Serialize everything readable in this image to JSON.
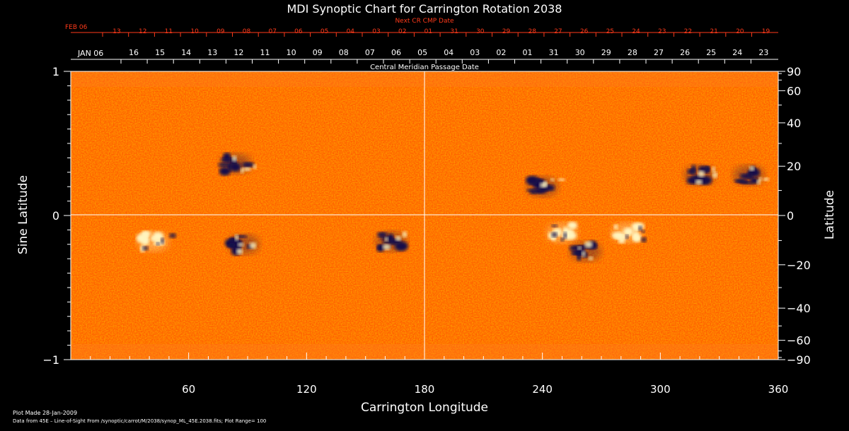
{
  "chart_data": {
    "type": "heatmap",
    "title": "MDI Synoptic Chart for Carrington Rotation 2038",
    "xlabel": "Carrington Longitude",
    "ylabel_left": "Sine Latitude",
    "ylabel_right": "Latitude",
    "xlim": [
      0,
      360
    ],
    "ylim_sine": [
      -1,
      1
    ],
    "x_ticks": [
      60,
      120,
      180,
      240,
      300,
      360
    ],
    "y_ticks_left": [
      {
        "value": 1,
        "label": "1"
      },
      {
        "value": 0,
        "label": "0"
      },
      {
        "value": -1,
        "label": "−1"
      }
    ],
    "y_ticks_right_degrees": [
      90,
      60,
      40,
      20,
      0,
      -20,
      -40,
      -60,
      -90
    ],
    "y_ticks_right_labels": [
      "90",
      "60",
      "40",
      "20",
      "0",
      "−20",
      "−40",
      "−60",
      "−90"
    ],
    "grid": "meridian at 180 and equator",
    "central_meridian_label": "Central Meridian Passage Date",
    "next_cr_label": "Next CR CMP Date",
    "next_cr_month": "FEB 06",
    "next_cr_dates": [
      "13",
      "12",
      "11",
      "10",
      "09",
      "08",
      "07",
      "06",
      "05",
      "04",
      "03",
      "02",
      "01",
      "31",
      "30",
      "29",
      "28",
      "27",
      "26",
      "25",
      "24",
      "23",
      "22",
      "21",
      "20",
      "19"
    ],
    "cmp_month": "JAN 06",
    "cmp_dates": [
      "16",
      "15",
      "14",
      "13",
      "12",
      "11",
      "10",
      "09",
      "08",
      "07",
      "06",
      "05",
      "04",
      "03",
      "02",
      "01",
      "31",
      "30",
      "29",
      "28",
      "27",
      "26",
      "25",
      "24",
      "23"
    ],
    "plot_range": 100,
    "colors": {
      "background": "#ff5a00",
      "positive": "#fff5c0",
      "negative": "#14104a",
      "axis": "#ffffff",
      "next_cr": "#ff3a1a"
    },
    "regions": [
      {
        "lon": 240,
        "sinlat": 0.2,
        "polarity": "negative"
      },
      {
        "lon": 250,
        "sinlat": -0.12,
        "polarity": "positive"
      },
      {
        "lon": 262,
        "sinlat": -0.25,
        "polarity": "negative"
      },
      {
        "lon": 163,
        "sinlat": -0.18,
        "polarity": "negative"
      },
      {
        "lon": 88,
        "sinlat": -0.2,
        "polarity": "negative"
      },
      {
        "lon": 84,
        "sinlat": 0.36,
        "polarity": "negative"
      },
      {
        "lon": 283,
        "sinlat": -0.12,
        "polarity": "positive"
      },
      {
        "lon": 320,
        "sinlat": 0.28,
        "polarity": "negative"
      },
      {
        "lon": 345,
        "sinlat": 0.28,
        "polarity": "negative"
      },
      {
        "lon": 42,
        "sinlat": -0.18,
        "polarity": "positive"
      }
    ]
  },
  "footer": {
    "plot_made": "Plot Made 28-Jan-2009",
    "data_source": "Data from 45E – Line-of-Sight From /synoptic/carrot/M/2038/synop_ML_45E.2038.fits; Plot Range= 100"
  }
}
